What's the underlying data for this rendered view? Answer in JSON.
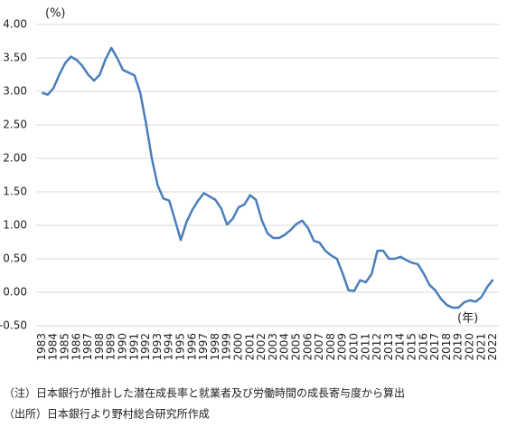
{
  "chart_data": {
    "type": "line",
    "y_unit_label": "(%)",
    "x_unit_label": "(年)",
    "notes": [
      "（注）日本銀行が推計した潜在成長率と就業者及び労働時間の成長寄与度から算出",
      "（出所）日本銀行より野村総合研究所作成"
    ],
    "x": [
      1983,
      1983.5,
      1984,
      1984.5,
      1985,
      1985.5,
      1986,
      1986.5,
      1987,
      1987.5,
      1988,
      1988.5,
      1989,
      1989.5,
      1990,
      1990.5,
      1991,
      1991.5,
      1992,
      1992.5,
      1993,
      1993.5,
      1994,
      1994.5,
      1995,
      1995.5,
      1996,
      1996.5,
      1997,
      1997.5,
      1998,
      1998.5,
      1999,
      1999.5,
      2000,
      2000.5,
      2001,
      2001.5,
      2002,
      2002.5,
      2003,
      2003.5,
      2004,
      2004.5,
      2005,
      2005.5,
      2006,
      2006.5,
      2007,
      2007.5,
      2008,
      2008.5,
      2009,
      2009.5,
      2010,
      2010.5,
      2011,
      2011.5,
      2012,
      2012.5,
      2013,
      2013.5,
      2014,
      2014.5,
      2015,
      2015.5,
      2016,
      2016.5,
      2017,
      2017.5,
      2018,
      2018.5,
      2019,
      2019.5,
      2020,
      2020.5,
      2021,
      2021.5,
      2022
    ],
    "series": [
      {
        "color": "#4a7ebb",
        "values": [
          2.98,
          2.95,
          3.05,
          3.25,
          3.42,
          3.52,
          3.47,
          3.38,
          3.25,
          3.16,
          3.25,
          3.48,
          3.65,
          3.5,
          3.32,
          3.28,
          3.24,
          2.98,
          2.52,
          2.0,
          1.6,
          1.4,
          1.37,
          1.08,
          0.78,
          1.05,
          1.23,
          1.37,
          1.48,
          1.43,
          1.38,
          1.25,
          1.01,
          1.1,
          1.27,
          1.31,
          1.45,
          1.38,
          1.08,
          0.88,
          0.81,
          0.81,
          0.86,
          0.93,
          1.02,
          1.07,
          0.96,
          0.77,
          0.74,
          0.62,
          0.55,
          0.5,
          0.28,
          0.03,
          0.02,
          0.18,
          0.15,
          0.27,
          0.62,
          0.62,
          0.5,
          0.5,
          0.53,
          0.48,
          0.44,
          0.42,
          0.28,
          0.11,
          0.03,
          -0.1,
          -0.19,
          -0.23,
          -0.23,
          -0.15,
          -0.12,
          -0.14,
          -0.07,
          0.08,
          0.19
        ]
      }
    ],
    "xlim": [
      1982.5,
      2022.5
    ],
    "xticks": [
      1983,
      1984,
      1985,
      1986,
      1987,
      1988,
      1989,
      1990,
      1991,
      1992,
      1993,
      1994,
      1995,
      1996,
      1997,
      1998,
      1999,
      2000,
      2001,
      2002,
      2003,
      2004,
      2005,
      2006,
      2007,
      2008,
      2009,
      2010,
      2011,
      2012,
      2013,
      2014,
      2015,
      2016,
      2017,
      2018,
      2019,
      2020,
      2021,
      2022
    ],
    "ylim": [
      -0.5,
      4.0
    ],
    "yticks": [
      {
        "value": -0.5,
        "label": "-0.50"
      },
      {
        "value": 0,
        "label": "0.00"
      },
      {
        "value": 0.5,
        "label": "0.50"
      },
      {
        "value": 1,
        "label": "1.00"
      },
      {
        "value": 1.5,
        "label": "1.50"
      },
      {
        "value": 2,
        "label": "2.00"
      },
      {
        "value": 2.5,
        "label": "2.50"
      },
      {
        "value": 3,
        "label": "3.00"
      },
      {
        "value": 3.5,
        "label": "3.50"
      },
      {
        "value": 4,
        "label": "4.00"
      }
    ],
    "grid": true
  }
}
